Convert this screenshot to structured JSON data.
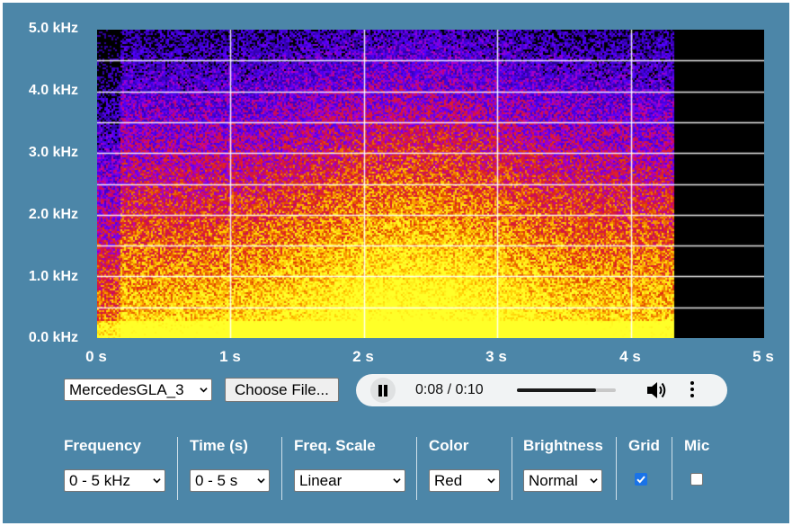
{
  "spectrogram": {
    "y_labels": [
      "5.0 kHz",
      "4.0 kHz",
      "3.0 kHz",
      "2.0 kHz",
      "1.0 kHz",
      "0.0 kHz"
    ],
    "x_labels": [
      "0 s",
      "1 s",
      "2 s",
      "3 s",
      "4 s",
      "5 s"
    ],
    "audio_end_s": 4.32
  },
  "file_select": {
    "value": "MercedesGLA_3"
  },
  "choose_file": {
    "label": "Choose File..."
  },
  "player": {
    "time": "0:08 / 0:10",
    "progress": 0.8
  },
  "settings": {
    "frequency": {
      "label": "Frequency",
      "value": "0 - 5 kHz"
    },
    "time": {
      "label": "Time (s)",
      "value": "0 - 5 s"
    },
    "freq_scale": {
      "label": "Freq. Scale",
      "value": "Linear"
    },
    "color": {
      "label": "Color",
      "value": "Red"
    },
    "brightness": {
      "label": "Brightness",
      "value": "Normal"
    },
    "grid": {
      "label": "Grid",
      "checked": true
    },
    "mic": {
      "label": "Mic",
      "checked": false
    }
  },
  "colors": {
    "background": "#4c86a8",
    "checkbox_on": "#1a73e8"
  }
}
